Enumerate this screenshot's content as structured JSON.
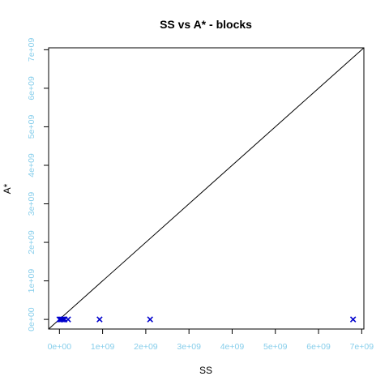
{
  "chart_data": {
    "type": "scatter",
    "title": "SS vs A* - blocks",
    "xlabel": "SS",
    "ylabel": "A*",
    "xlim": [
      -250000000.0,
      7050000000.0
    ],
    "ylim": [
      -250000000.0,
      7050000000.0
    ],
    "x_ticks": [
      {
        "value": 0,
        "label": "0e+00"
      },
      {
        "value": 1000000000.0,
        "label": "1e+09"
      },
      {
        "value": 2000000000.0,
        "label": "2e+09"
      },
      {
        "value": 3000000000.0,
        "label": "3e+09"
      },
      {
        "value": 4000000000.0,
        "label": "4e+09"
      },
      {
        "value": 5000000000.0,
        "label": "5e+09"
      },
      {
        "value": 6000000000.0,
        "label": "6e+09"
      },
      {
        "value": 7000000000.0,
        "label": "7e+09"
      }
    ],
    "y_ticks": [
      {
        "value": 0,
        "label": "0e+00"
      },
      {
        "value": 1000000000.0,
        "label": "1e+09"
      },
      {
        "value": 2000000000.0,
        "label": "2e+09"
      },
      {
        "value": 3000000000.0,
        "label": "3e+09"
      },
      {
        "value": 4000000000.0,
        "label": "4e+09"
      },
      {
        "value": 5000000000.0,
        "label": "5e+09"
      },
      {
        "value": 6000000000.0,
        "label": "6e+09"
      },
      {
        "value": 7000000000.0,
        "label": "7e+09"
      }
    ],
    "points": [
      {
        "x": 0,
        "y": 0
      },
      {
        "x": 30000000.0,
        "y": 0
      },
      {
        "x": 60000000.0,
        "y": 0
      },
      {
        "x": 90000000.0,
        "y": 0
      },
      {
        "x": 120000000.0,
        "y": 0
      },
      {
        "x": 200000000.0,
        "y": 0
      },
      {
        "x": 930000000.0,
        "y": 0
      },
      {
        "x": 2100000000.0,
        "y": 0
      },
      {
        "x": 6800000000.0,
        "y": 0
      }
    ],
    "reference_line": {
      "type": "identity",
      "slope": 1,
      "intercept": 0
    },
    "grid": false,
    "colors": {
      "tick_labels": "#87ceeb",
      "points": "#0000cd",
      "axes": "#000000",
      "reference_line": "#000000"
    }
  }
}
